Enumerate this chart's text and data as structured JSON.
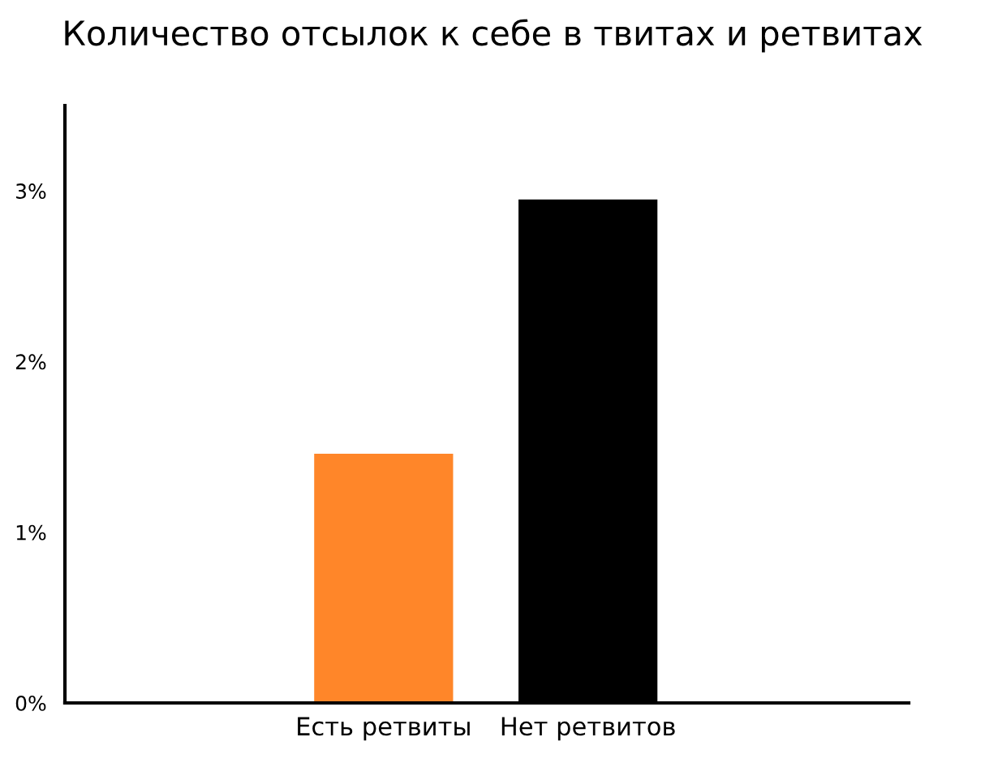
{
  "chart_data": {
    "type": "bar",
    "title": "Количество отсылок к себе в твитах и ретвитах",
    "categories": [
      "Есть ретвиты",
      "Нет ретвитов"
    ],
    "values": [
      1.46,
      2.95
    ],
    "colors": [
      "#ff8629",
      "#000000"
    ],
    "ylim": [
      0,
      3.5
    ],
    "yticks": [
      {
        "value": 0,
        "label": "0%"
      },
      {
        "value": 1,
        "label": "1%"
      },
      {
        "value": 2,
        "label": "2%"
      },
      {
        "value": 3,
        "label": "3%"
      }
    ],
    "grid": false
  }
}
